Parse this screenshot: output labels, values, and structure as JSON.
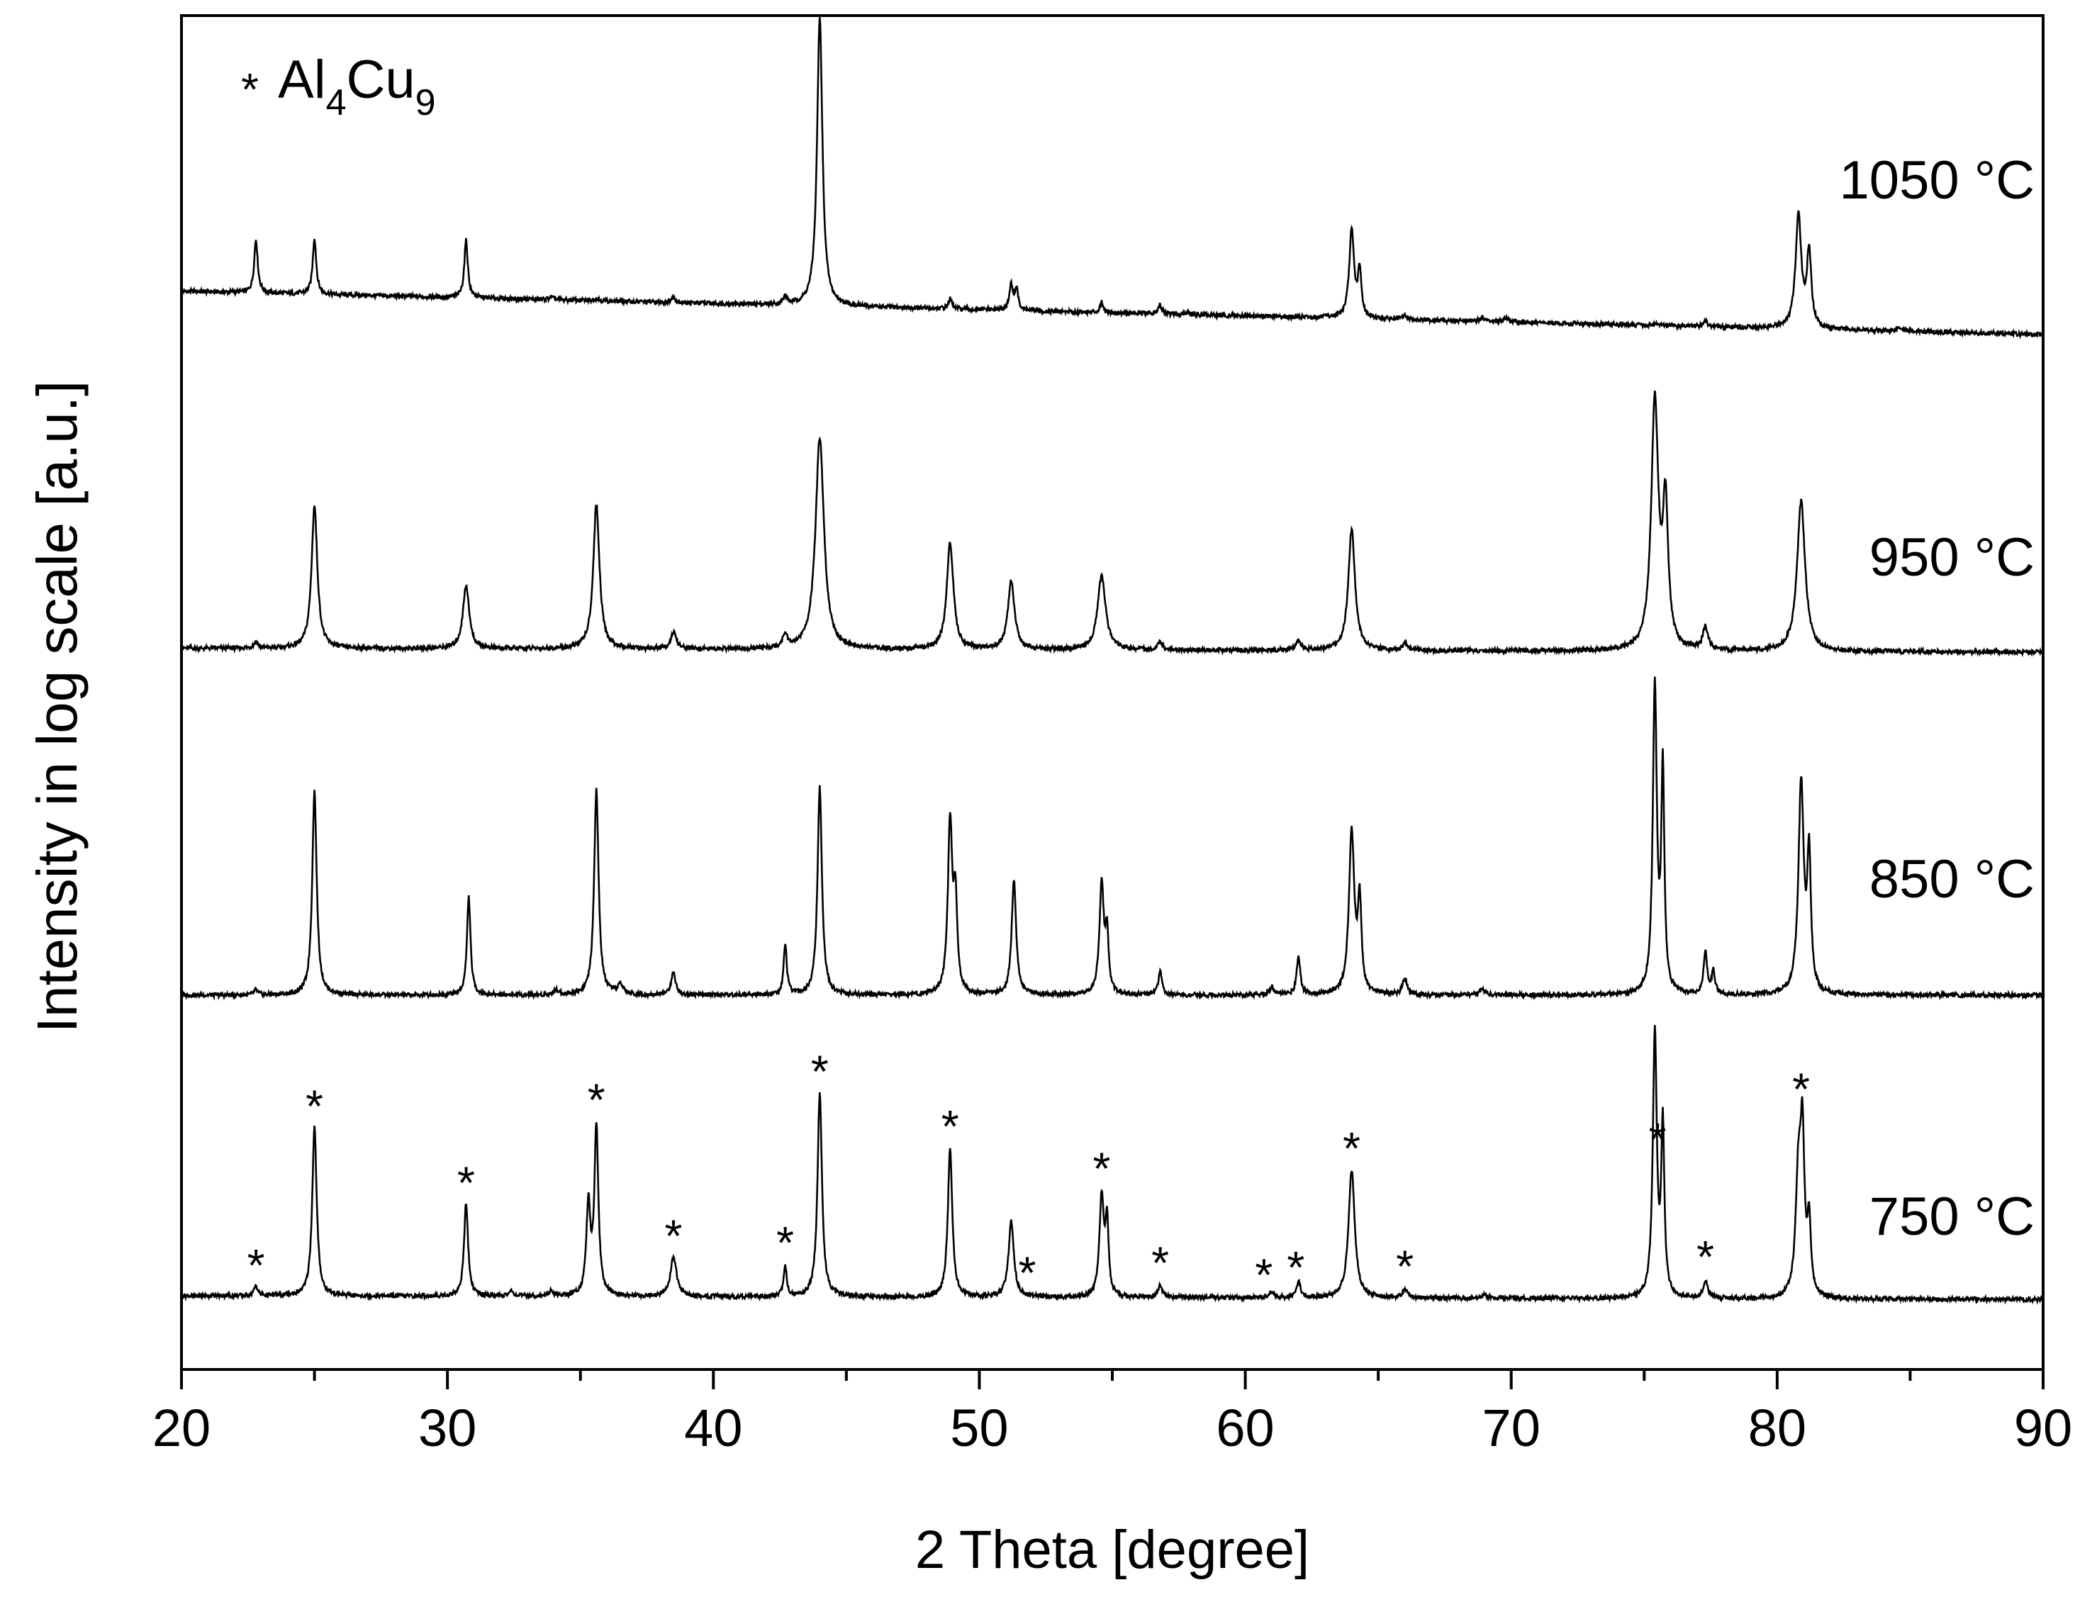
{
  "chart_data": {
    "type": "line",
    "xlabel": "2 Theta [degree]",
    "ylabel": "Intensity in log scale [a.u.]",
    "xlim": [
      20,
      90
    ],
    "x_ticks": [
      "20",
      "30",
      "40",
      "50",
      "60",
      "70",
      "80",
      "90"
    ],
    "y_scale": "log",
    "legend": {
      "marker": "*",
      "text": "Al",
      "sub1": "4",
      "text2": "Cu",
      "sub2": "9"
    },
    "series": [
      {
        "name": "1050 °C",
        "baseline_left": 0.34,
        "baseline_right": 0.0,
        "peaks": [
          [
            22.8,
            0.42,
            0.08
          ],
          [
            25.0,
            0.44,
            0.08
          ],
          [
            30.7,
            0.45,
            0.08
          ],
          [
            33.9,
            0.02,
            0.1
          ],
          [
            35.6,
            0.02,
            0.1
          ],
          [
            38.5,
            0.04,
            0.1
          ],
          [
            42.7,
            0.06,
            0.08
          ],
          [
            44.0,
            2.26,
            0.12
          ],
          [
            48.9,
            0.08,
            0.08
          ],
          [
            51.2,
            0.2,
            0.08
          ],
          [
            51.4,
            0.17,
            0.07
          ],
          [
            54.6,
            0.08,
            0.08
          ],
          [
            56.8,
            0.07,
            0.08
          ],
          [
            57.8,
            0.02,
            0.1
          ],
          [
            64.0,
            0.68,
            0.11
          ],
          [
            64.3,
            0.35,
            0.08
          ],
          [
            66.0,
            0.03,
            0.1
          ],
          [
            68.9,
            0.03,
            0.1
          ],
          [
            69.8,
            0.04,
            0.1
          ],
          [
            75.5,
            0.02,
            0.1
          ],
          [
            77.3,
            0.04,
            0.1
          ],
          [
            80.8,
            0.88,
            0.13
          ],
          [
            81.2,
            0.58,
            0.1
          ],
          [
            84.6,
            0.03,
            0.15
          ]
        ]
      },
      {
        "name": "950 °C",
        "baseline_left": 0.03,
        "baseline_right": 0.0,
        "peaks": [
          [
            22.8,
            0.05,
            0.1
          ],
          [
            25.0,
            1.12,
            0.13
          ],
          [
            30.7,
            0.5,
            0.14
          ],
          [
            35.6,
            1.13,
            0.14
          ],
          [
            38.5,
            0.13,
            0.12
          ],
          [
            42.7,
            0.11,
            0.1
          ],
          [
            44.0,
            1.66,
            0.19
          ],
          [
            48.9,
            0.84,
            0.15
          ],
          [
            51.2,
            0.53,
            0.15
          ],
          [
            54.6,
            0.58,
            0.18
          ],
          [
            56.8,
            0.06,
            0.1
          ],
          [
            62.0,
            0.07,
            0.12
          ],
          [
            64.0,
            0.95,
            0.15
          ],
          [
            66.0,
            0.05,
            0.12
          ],
          [
            75.4,
            1.94,
            0.16
          ],
          [
            75.8,
            1.08,
            0.12
          ],
          [
            77.3,
            0.18,
            0.12
          ],
          [
            80.9,
            1.18,
            0.18
          ]
        ]
      },
      {
        "name": "850 °C",
        "baseline_left": 0.0,
        "baseline_right": 0.0,
        "peaks": [
          [
            22.8,
            0.04,
            0.08
          ],
          [
            25.0,
            1.6,
            0.1
          ],
          [
            30.8,
            0.77,
            0.08
          ],
          [
            34.1,
            0.04,
            0.1
          ],
          [
            35.6,
            1.61,
            0.1
          ],
          [
            36.5,
            0.08,
            0.12
          ],
          [
            38.5,
            0.18,
            0.1
          ],
          [
            42.7,
            0.4,
            0.07
          ],
          [
            44.0,
            1.63,
            0.1
          ],
          [
            48.9,
            1.34,
            0.1
          ],
          [
            49.1,
            0.7,
            0.08
          ],
          [
            51.3,
            0.9,
            0.1
          ],
          [
            54.6,
            0.86,
            0.1
          ],
          [
            54.8,
            0.45,
            0.07
          ],
          [
            56.8,
            0.18,
            0.08
          ],
          [
            61.0,
            0.06,
            0.1
          ],
          [
            62.0,
            0.3,
            0.08
          ],
          [
            64.0,
            1.27,
            0.12
          ],
          [
            64.3,
            0.7,
            0.08
          ],
          [
            66.0,
            0.13,
            0.1
          ],
          [
            68.9,
            0.05,
            0.1
          ],
          [
            75.4,
            2.4,
            0.09
          ],
          [
            75.7,
            1.72,
            0.07
          ],
          [
            77.3,
            0.34,
            0.08
          ],
          [
            77.6,
            0.18,
            0.07
          ],
          [
            80.9,
            1.65,
            0.12
          ],
          [
            81.2,
            1.04,
            0.08
          ]
        ]
      },
      {
        "name": "750 °C",
        "baseline_left": 0.0,
        "baseline_right": -0.03,
        "peaks": [
          [
            22.8,
            0.08,
            0.08
          ],
          [
            25.0,
            1.33,
            0.1
          ],
          [
            30.7,
            0.73,
            0.09
          ],
          [
            32.4,
            0.04,
            0.1
          ],
          [
            33.9,
            0.04,
            0.1
          ],
          [
            35.3,
            0.7,
            0.09
          ],
          [
            35.6,
            1.32,
            0.09
          ],
          [
            38.5,
            0.31,
            0.14
          ],
          [
            42.7,
            0.25,
            0.07
          ],
          [
            44.0,
            1.6,
            0.1
          ],
          [
            48.9,
            1.17,
            0.1
          ],
          [
            51.2,
            0.59,
            0.12
          ],
          [
            54.6,
            0.78,
            0.1
          ],
          [
            54.8,
            0.56,
            0.07
          ],
          [
            56.8,
            0.1,
            0.1
          ],
          [
            61.0,
            0.05,
            0.1
          ],
          [
            62.0,
            0.12,
            0.1
          ],
          [
            64.0,
            1.0,
            0.14
          ],
          [
            66.0,
            0.07,
            0.1
          ],
          [
            69.0,
            0.03,
            0.1
          ],
          [
            75.4,
            2.07,
            0.09
          ],
          [
            75.7,
            1.32,
            0.07
          ],
          [
            77.3,
            0.14,
            0.1
          ],
          [
            80.8,
            0.94,
            0.12
          ],
          [
            80.95,
            1.14,
            0.09
          ],
          [
            81.2,
            0.55,
            0.08
          ]
        ]
      }
    ],
    "phase_markers": {
      "phase": "Al4Cu9",
      "symbol": "*",
      "positions": [
        22.8,
        25.0,
        30.7,
        35.6,
        38.5,
        42.7,
        44.0,
        48.9,
        51.8,
        54.6,
        56.8,
        60.7,
        61.9,
        64.0,
        66.0,
        75.5,
        77.3,
        80.9
      ]
    }
  }
}
